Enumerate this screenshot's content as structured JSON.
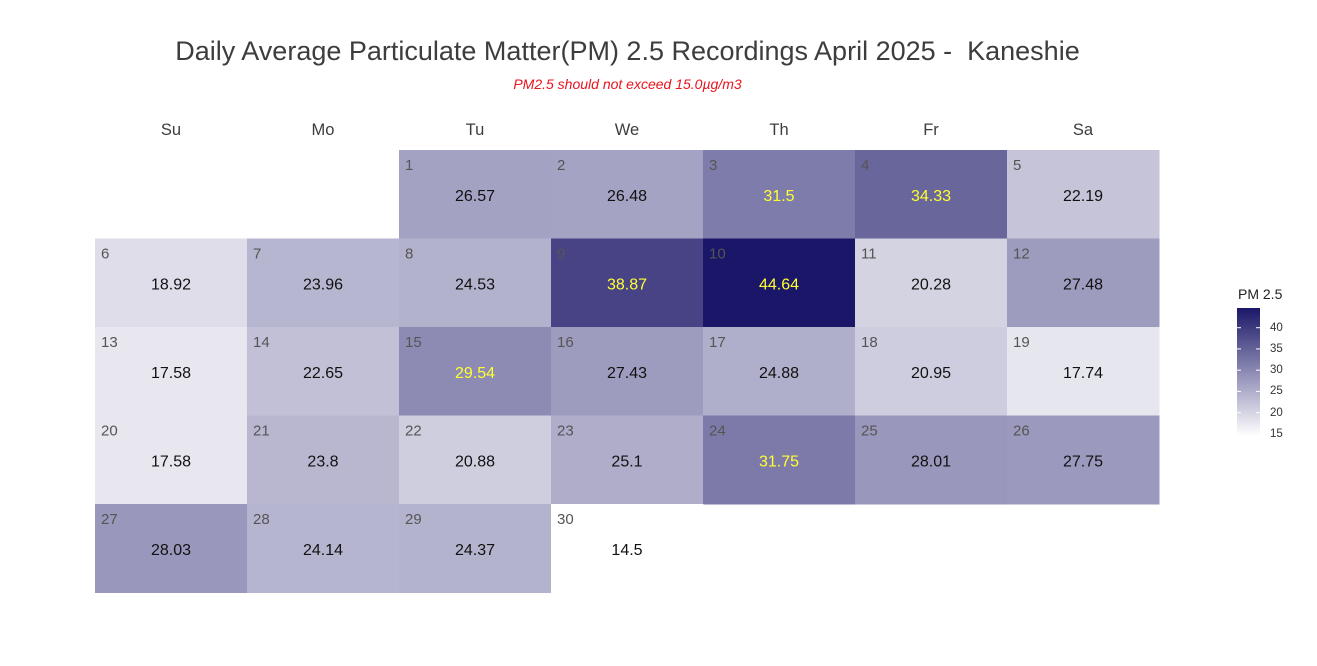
{
  "title": "Daily Average Particulate Matter(PM) 2.5 Recordings April 2025 -  Kaneshie",
  "subtitle": "PM2.5 should not exceed 15.0µg/m3",
  "colors": {
    "low": "#ffffff",
    "high": "#1b1768",
    "threshold_text": "#ffff33",
    "normal_text": "#111111",
    "day_number": "#555555",
    "subtitle": "#e8141e"
  },
  "legend": {
    "title": "PM 2.5",
    "ticks": [
      15,
      20,
      25,
      30,
      35,
      40
    ],
    "range": [
      14.5,
      44.64
    ]
  },
  "chart_data": {
    "type": "heatmap",
    "layout": "calendar",
    "month": "April 2025",
    "weekdays": [
      "Su",
      "Mo",
      "Tu",
      "We",
      "Th",
      "Fr",
      "Sa"
    ],
    "first_weekday_index": 2,
    "value_labels_highlighted_above": 28.5,
    "days": [
      {
        "day": 1,
        "value": 26.57
      },
      {
        "day": 2,
        "value": 26.48
      },
      {
        "day": 3,
        "value": 31.5
      },
      {
        "day": 4,
        "value": 34.33
      },
      {
        "day": 5,
        "value": 22.19
      },
      {
        "day": 6,
        "value": 18.92
      },
      {
        "day": 7,
        "value": 23.96
      },
      {
        "day": 8,
        "value": 24.53
      },
      {
        "day": 9,
        "value": 38.87
      },
      {
        "day": 10,
        "value": 44.64
      },
      {
        "day": 11,
        "value": 20.28
      },
      {
        "day": 12,
        "value": 27.48
      },
      {
        "day": 13,
        "value": 17.58
      },
      {
        "day": 14,
        "value": 22.65
      },
      {
        "day": 15,
        "value": 29.54
      },
      {
        "day": 16,
        "value": 27.43
      },
      {
        "day": 17,
        "value": 24.88
      },
      {
        "day": 18,
        "value": 20.95
      },
      {
        "day": 19,
        "value": 17.74
      },
      {
        "day": 20,
        "value": 17.58
      },
      {
        "day": 21,
        "value": 23.8
      },
      {
        "day": 22,
        "value": 20.88
      },
      {
        "day": 23,
        "value": 25.1
      },
      {
        "day": 24,
        "value": 31.75
      },
      {
        "day": 25,
        "value": 28.01
      },
      {
        "day": 26,
        "value": 27.75
      },
      {
        "day": 27,
        "value": 28.03
      },
      {
        "day": 28,
        "value": 24.14
      },
      {
        "day": 29,
        "value": 24.37
      },
      {
        "day": 30,
        "value": 14.5
      }
    ]
  }
}
